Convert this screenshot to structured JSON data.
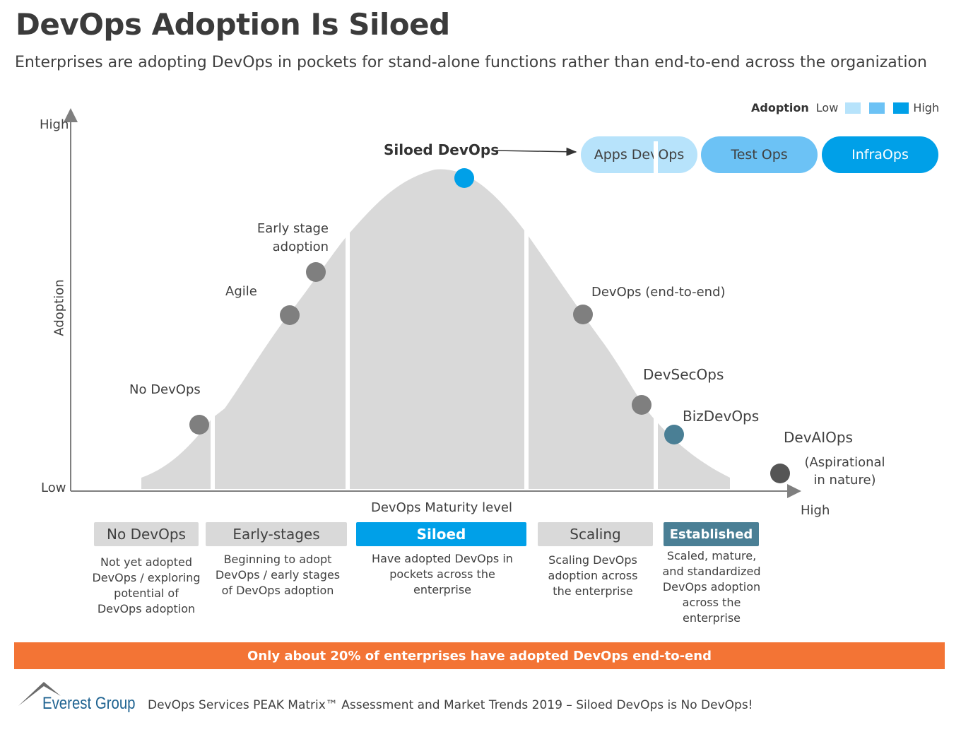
{
  "title": "DevOps Adoption Is Siloed",
  "subtitle": "Enterprises are adopting DevOps in pockets for stand-alone functions rather than end-to-end across the organization",
  "legend": {
    "title": "Adoption",
    "low": "Low",
    "high": "High",
    "colors": [
      "#b7e3fb",
      "#6cc2f5",
      "#00a0e8"
    ]
  },
  "siloed_label": "Siloed DevOps",
  "pills": [
    {
      "label": "Apps DevOps",
      "color": "#b7e3fb"
    },
    {
      "label": "Test Ops",
      "color": "#6cc2f5"
    },
    {
      "label": "InfraOps",
      "color": "#00a0e8"
    }
  ],
  "axes": {
    "y_label": "Adoption",
    "y_high": "High",
    "y_low": "Low",
    "x_label": "DevOps Maturity level",
    "x_high": "High"
  },
  "points": [
    {
      "label": "No DevOps",
      "color": "#7f7f7f"
    },
    {
      "label": "Agile",
      "color": "#7f7f7f"
    },
    {
      "label": "Early stage adoption",
      "color": "#7f7f7f"
    },
    {
      "label": "DevOps (end-to-end)",
      "color": "#7f7f7f"
    },
    {
      "label": "DevSecOps",
      "color": "#7f7f7f"
    },
    {
      "label": "BizDevOps",
      "color": "#4a7f95"
    },
    {
      "label": "DevAIOps",
      "note": "(Aspirational in nature)",
      "color": "#555555"
    }
  ],
  "stages": [
    {
      "name": "No DevOps",
      "desc": "Not yet adopted DevOps / exploring potential of DevOps adoption"
    },
    {
      "name": "Early-stages",
      "desc": "Beginning to adopt DevOps / early stages of DevOps adoption"
    },
    {
      "name": "Siloed",
      "desc": "Have adopted DevOps in pockets across the enterprise"
    },
    {
      "name": "Scaling",
      "desc": "Scaling DevOps adoption across the enterprise"
    },
    {
      "name": "Established",
      "desc": "Scaled, mature, and standardized DevOps adoption across the enterprise"
    }
  ],
  "banner": "Only about 20% of enterprises have adopted DevOps end-to-end",
  "footer": {
    "logo": "Everest Group",
    "source": "DevOps Services PEAK Matrix™ Assessment and Market Trends 2019 – Siloed DevOps is No DevOps!"
  }
}
